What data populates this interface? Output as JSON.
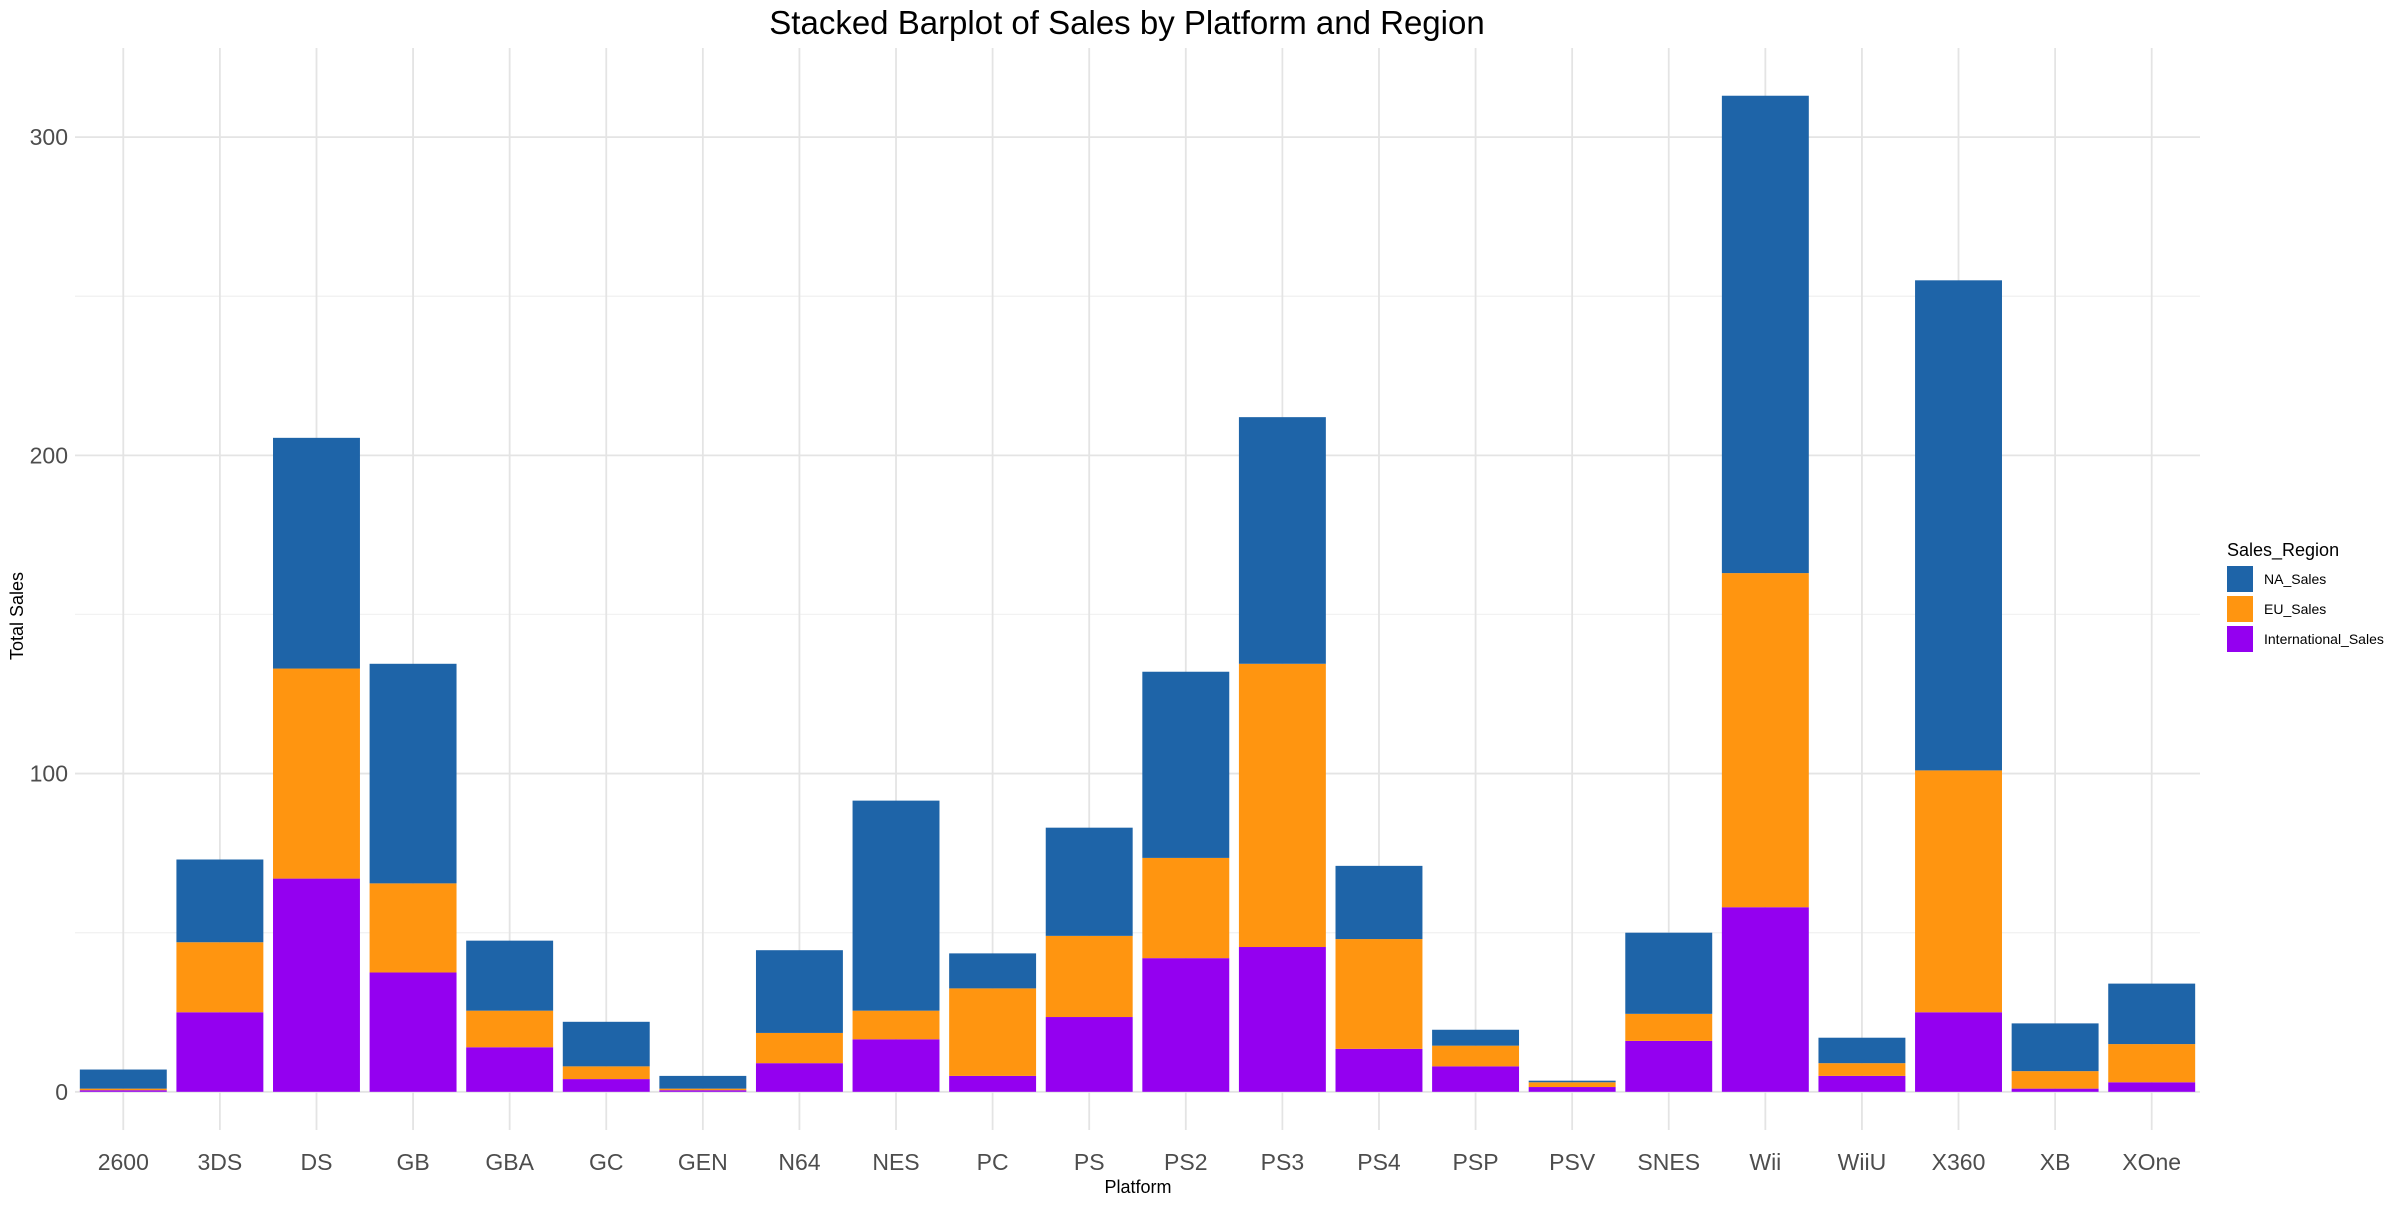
{
  "chart_data": {
    "type": "bar",
    "stacked": true,
    "title": "Stacked Barplot of Sales by Platform and Region",
    "xlabel": "Platform",
    "ylabel": "Total Sales",
    "ylim": [
      -12,
      328
    ],
    "yticks": [
      0,
      100,
      200,
      300
    ],
    "grid": true,
    "legend_position": "right",
    "legend_title": "Sales_Region",
    "categories": [
      "2600",
      "3DS",
      "DS",
      "GB",
      "GBA",
      "GC",
      "GEN",
      "N64",
      "NES",
      "PC",
      "PS",
      "PS2",
      "PS3",
      "PS4",
      "PSP",
      "PSV",
      "SNES",
      "Wii",
      "WiiU",
      "X360",
      "XB",
      "XOne"
    ],
    "series": [
      {
        "name": "International_Sales",
        "color": "#9400F0",
        "values": [
          0.5,
          25,
          67,
          37.5,
          14,
          4,
          0.5,
          9,
          16.5,
          5,
          23.5,
          42,
          45.5,
          13.5,
          8,
          1.5,
          16,
          58,
          5,
          25,
          1,
          3
        ]
      },
      {
        "name": "EU_Sales",
        "color": "#FF9510",
        "values": [
          0.5,
          22,
          66,
          28,
          11.5,
          4,
          0.5,
          9.5,
          9,
          27.5,
          25.5,
          31.5,
          89,
          34.5,
          6.5,
          1.5,
          8.5,
          105,
          4,
          76,
          5.5,
          12
        ]
      },
      {
        "name": "NA_Sales",
        "color": "#1E64A8",
        "values": [
          6,
          26,
          72.5,
          69,
          22,
          14,
          4,
          26,
          66,
          11,
          34,
          58.5,
          77.5,
          23,
          5,
          0.5,
          25.5,
          150,
          8,
          154,
          15,
          19
        ]
      }
    ],
    "legend_order": [
      "NA_Sales",
      "EU_Sales",
      "International_Sales"
    ]
  }
}
